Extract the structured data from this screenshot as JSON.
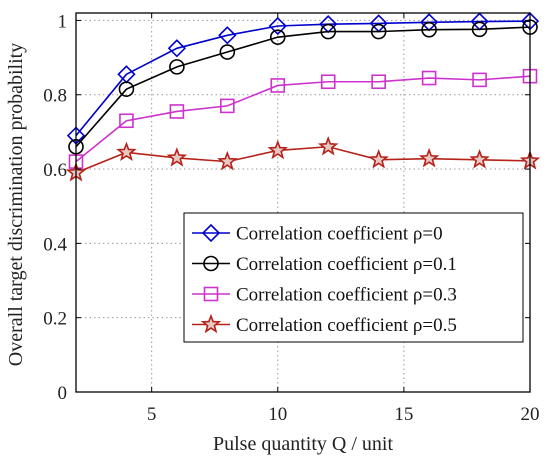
{
  "chart_data": {
    "type": "line",
    "xlabel": "Pulse quantity Q / unit",
    "ylabel": "Overall target discrimination probability",
    "xlim": [
      2,
      20
    ],
    "ylim": [
      0,
      1.02
    ],
    "xticks": [
      5,
      10,
      15,
      20
    ],
    "yticks": [
      0,
      0.2,
      0.4,
      0.6,
      0.8,
      1
    ],
    "xtick_labels": [
      "5",
      "10",
      "15",
      "20"
    ],
    "ytick_labels": [
      "0",
      "0.2",
      "0.4",
      "0.6",
      "0.8",
      "1"
    ],
    "grid": true,
    "legend_position": "bottom-right",
    "x": [
      2,
      4,
      6,
      8,
      10,
      12,
      14,
      16,
      18,
      20
    ],
    "series": [
      {
        "name": "Correlation coefficient ρ=0",
        "values": [
          0.69,
          0.855,
          0.925,
          0.96,
          0.985,
          0.99,
          0.992,
          0.995,
          0.997,
          0.998
        ],
        "color": "#0000cc",
        "marker": "diamond"
      },
      {
        "name": "Correlation coefficient ρ=0.1",
        "values": [
          0.66,
          0.815,
          0.875,
          0.915,
          0.955,
          0.97,
          0.97,
          0.975,
          0.976,
          0.982
        ],
        "color": "#000000",
        "marker": "circle"
      },
      {
        "name": "Correlation coefficient ρ=0.3",
        "values": [
          0.62,
          0.73,
          0.755,
          0.77,
          0.825,
          0.835,
          0.835,
          0.845,
          0.84,
          0.85
        ],
        "color": "#cc33cc",
        "marker": "square"
      },
      {
        "name": "Correlation coefficient ρ=0.5",
        "values": [
          0.59,
          0.645,
          0.63,
          0.62,
          0.65,
          0.66,
          0.625,
          0.628,
          0.625,
          0.622
        ],
        "color": "#b5221a",
        "marker": "star"
      }
    ]
  }
}
